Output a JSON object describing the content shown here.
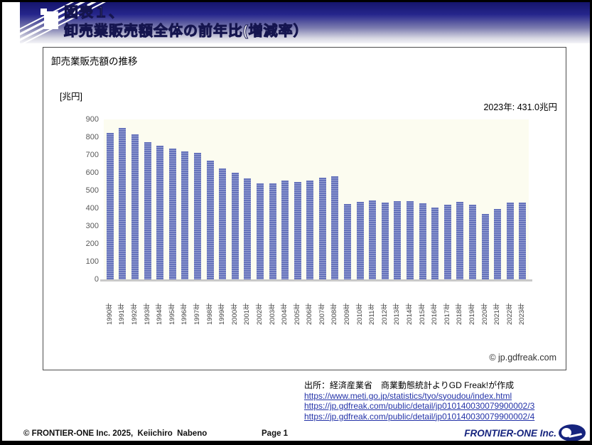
{
  "header": {
    "title_line1": "図表１、",
    "title_line2": "卸売業販売額全体の前年比(増減率）"
  },
  "chart": {
    "title": "卸売業販売額の推移",
    "unit_label": "[兆円]",
    "annotation": "2023年: 431.0兆円",
    "watermark": "© jp.gdfreak.com"
  },
  "chart_data": {
    "type": "bar",
    "title": "卸売業販売額の推移",
    "xlabel": "",
    "ylabel": "[兆円]",
    "ylim": [
      0,
      900
    ],
    "yticks": [
      0,
      100,
      200,
      300,
      400,
      500,
      600,
      700,
      800,
      900
    ],
    "grid": false,
    "legend": null,
    "annotation": "2023年: 431.0兆円",
    "bar_color": "#6673bb",
    "bar_stripe": "#98a2d4",
    "plot_bg": "#fcfcf0",
    "categories": [
      "1990年",
      "1991年",
      "1992年",
      "1993年",
      "1994年",
      "1995年",
      "1996年",
      "1997年",
      "1998年",
      "1999年",
      "2000年",
      "2001年",
      "2002年",
      "2003年",
      "2004年",
      "2005年",
      "2006年",
      "2007年",
      "2008年",
      "2009年",
      "2010年",
      "2011年",
      "2012年",
      "2013年",
      "2014年",
      "2015年",
      "2016年",
      "2017年",
      "2018年",
      "2019年",
      "2020年",
      "2021年",
      "2022年",
      "2023年"
    ],
    "values": [
      824,
      851,
      817,
      771,
      751,
      735,
      722,
      712,
      668,
      624,
      601,
      568,
      542,
      542,
      558,
      550,
      558,
      572,
      580,
      423,
      437,
      446,
      433,
      439,
      441,
      430,
      406,
      422,
      438,
      422,
      367,
      396,
      431,
      431
    ]
  },
  "source": {
    "line": "出所：経済産業省　商業動態統計よりGD Freak!が作成",
    "links": [
      "https://www.meti.go.jp/statistics/tyo/syoudou/index.html",
      "https://jp.gdfreak.com/public/detail/jp010140030079900002/3",
      "https://jp.gdfreak.com/public/detail/jp010140030079900002/4"
    ]
  },
  "footer": {
    "copyright": "© FRONTIER-ONE Inc. 2025,  Keiichiro  Nabeno",
    "page": "Page 1",
    "brand": "FRONTIER-ONE Inc."
  },
  "colors": {
    "banner_navy": "#14146b",
    "link_blue": "#2433a8",
    "brand_navy": "#16247e",
    "axis_gray": "#c9c9c9"
  }
}
